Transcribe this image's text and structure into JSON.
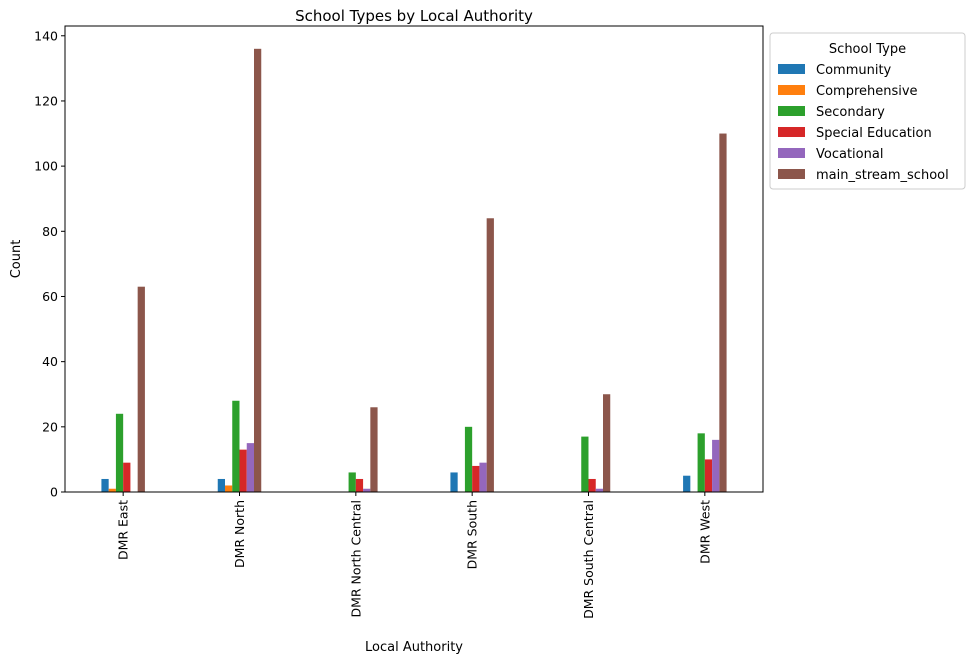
{
  "chart_data": {
    "type": "bar",
    "title": "School Types by Local Authority",
    "xlabel": "Local Authority",
    "ylabel": "Count",
    "ylim": [
      0,
      143
    ],
    "yticks": [
      0,
      20,
      40,
      60,
      80,
      100,
      120,
      140
    ],
    "grid": false,
    "legend": {
      "title": "School Type",
      "placement": "outside-top-right"
    },
    "categories": [
      "DMR East",
      "DMR North",
      "DMR North Central",
      "DMR South",
      "DMR South Central",
      "DMR West"
    ],
    "series": [
      {
        "name": "Community",
        "color": "#1f77b4",
        "values": [
          4,
          4,
          0,
          6,
          0,
          5
        ]
      },
      {
        "name": "Comprehensive",
        "color": "#ff7f0e",
        "values": [
          1,
          2,
          0,
          0,
          0,
          0
        ]
      },
      {
        "name": "Secondary",
        "color": "#2ca02c",
        "values": [
          24,
          28,
          6,
          20,
          17,
          18
        ]
      },
      {
        "name": "Special Education",
        "color": "#d62728",
        "values": [
          9,
          13,
          4,
          8,
          4,
          10
        ]
      },
      {
        "name": "Vocational",
        "color": "#9467bd",
        "values": [
          0,
          15,
          1,
          9,
          1,
          16
        ]
      },
      {
        "name": "main_stream_school",
        "color": "#8c564b",
        "values": [
          63,
          136,
          26,
          84,
          30,
          110
        ]
      }
    ]
  }
}
